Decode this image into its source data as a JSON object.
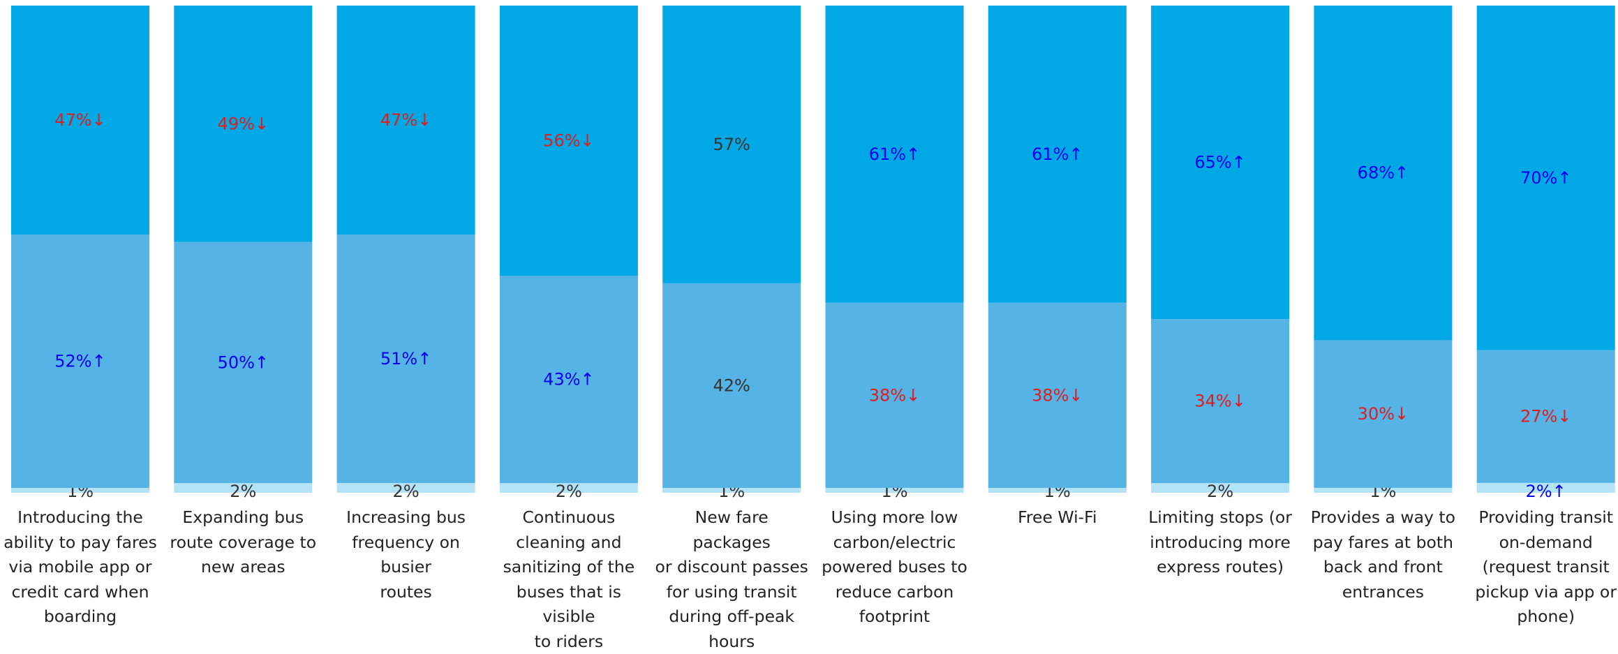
{
  "chart_data": {
    "type": "bar",
    "stacked": true,
    "normalized": true,
    "categories": [
      "Introducing the ability to pay fares via mobile app or credit card when boarding",
      "Expanding bus route coverage to new areas",
      "Increasing bus frequency on busier routes",
      "Continuous cleaning and sanitizing of the buses that is visible to riders",
      "New fare packages or discount passes for using transit during off-peak hours",
      "Using more low carbon/electric powered buses to reduce carbon footprint",
      "Free Wi-Fi",
      "Limiting stops (or introducing more express routes)",
      "Provides a way to pay fares at both back and front entrances",
      "Providing transit on-demand (request transit pickup via app or phone)"
    ],
    "category_lines": [
      [
        "Introducing the",
        "ability to pay fares",
        "via mobile app or",
        "credit card when",
        "boarding"
      ],
      [
        "Expanding bus",
        "route coverage to",
        "new areas"
      ],
      [
        "Increasing bus",
        "frequency on busier",
        "routes"
      ],
      [
        "Continuous",
        "cleaning and",
        "sanitizing of the",
        "buses that is visible",
        "to riders"
      ],
      [
        "New fare packages",
        "or discount passes",
        "for using transit",
        "during off-peak",
        "hours"
      ],
      [
        "Using more low",
        "carbon/electric",
        "powered buses to",
        "reduce carbon",
        "footprint"
      ],
      [
        "Free Wi-Fi"
      ],
      [
        "Limiting stops (or",
        "introducing more",
        "express routes)"
      ],
      [
        "Provides a way to",
        "pay fares at both",
        "back and front",
        "entrances"
      ],
      [
        "Providing transit",
        "on-demand",
        "(request transit",
        "pickup via app or",
        "phone)"
      ]
    ],
    "series": [
      {
        "color": "#00a9e6",
        "values": [
          47,
          49,
          47,
          56,
          57,
          61,
          61,
          65,
          68,
          70
        ],
        "labels": [
          "47%↓",
          "49%↓",
          "47%↓",
          "56%↓",
          "57%",
          "61%↑",
          "61%↑",
          "65%↑",
          "68%↑",
          "70%↑"
        ],
        "trend": [
          "down",
          "down",
          "down",
          "down",
          "none",
          "up",
          "up",
          "up",
          "up",
          "up"
        ]
      },
      {
        "color": "#55b3e5",
        "values": [
          52,
          50,
          51,
          43,
          42,
          38,
          38,
          34,
          30,
          27
        ],
        "labels": [
          "52%↑",
          "50%↑",
          "51%↑",
          "43%↑",
          "42%",
          "38%↓",
          "38%↓",
          "34%↓",
          "30%↓",
          "27%↓"
        ],
        "trend": [
          "up",
          "up",
          "up",
          "up",
          "none",
          "down",
          "down",
          "down",
          "down",
          "down"
        ]
      },
      {
        "color": "#b3e3f5",
        "values": [
          1,
          2,
          2,
          2,
          1,
          1,
          1,
          2,
          1,
          2
        ],
        "labels": [
          "1%",
          "2%",
          "2%",
          "2%",
          "1%",
          "1%",
          "1%",
          "2%",
          "1%",
          "2%↑"
        ],
        "trend": [
          "none",
          "none",
          "none",
          "none",
          "none",
          "none",
          "none",
          "none",
          "none",
          "up"
        ]
      }
    ],
    "ylim": [
      0,
      100
    ],
    "trend_colors": {
      "up": "#0000ee",
      "down": "#dd1e1e",
      "none": "#333333"
    }
  }
}
